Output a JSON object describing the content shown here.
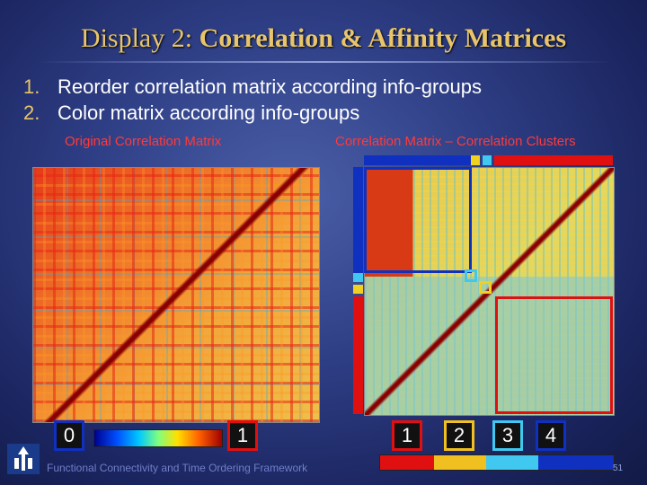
{
  "title": {
    "part1": "Display 2:",
    "part2": "Correlation & Affinity Matrices"
  },
  "bullets": [
    {
      "num": "1.",
      "text": "Reorder correlation matrix according info-groups"
    },
    {
      "num": "2.",
      "text": "Color matrix according info-groups"
    }
  ],
  "left_panel": {
    "label": "Original Correlation Matrix",
    "scale_min": "0",
    "scale_max": "1"
  },
  "right_panel": {
    "label": "Correlation Matrix – Correlation Clusters",
    "clusters": [
      {
        "id": "1",
        "color": "#e01010"
      },
      {
        "id": "2",
        "color": "#f0c020"
      },
      {
        "id": "3",
        "color": "#40c8f0"
      },
      {
        "id": "4",
        "color": "#1030c0"
      }
    ]
  },
  "footer": "Functional Connectivity and Time Ordering Framework",
  "page_number": "51"
}
